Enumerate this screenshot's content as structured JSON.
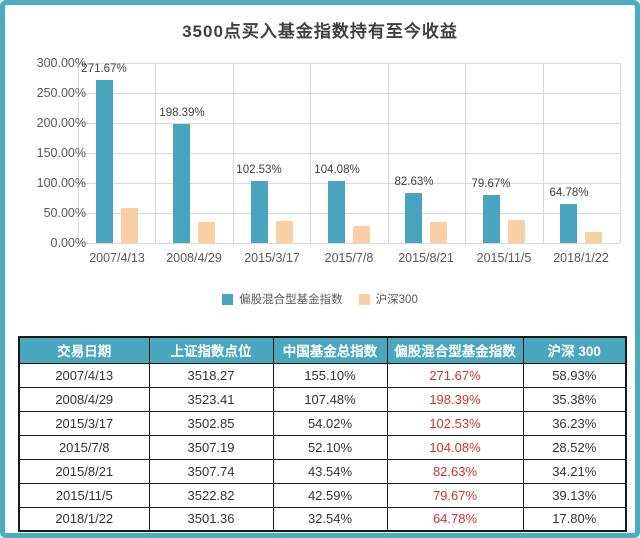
{
  "title": "3500点买入基金指数持有至今收益",
  "colors": {
    "frame": "#4cadc1",
    "series1": "#49a4bd",
    "series2": "#f9d0a5",
    "table_header_bg": "#4aa7bd",
    "highlight_red": "#cc3432",
    "gridline": "#d9d9d9",
    "axis_text": "#595959",
    "title_text": "#404040"
  },
  "chart_data": {
    "type": "bar",
    "title": "3500点买入基金指数持有至今收益",
    "categories": [
      "2007/4/13",
      "2008/4/29",
      "2015/3/17",
      "2015/7/8",
      "2015/8/21",
      "2015/11/5",
      "2018/1/22"
    ],
    "series": [
      {
        "name": "偏股混合型基金指数",
        "color": "#49a4bd",
        "values": [
          271.67,
          198.39,
          102.53,
          104.08,
          82.63,
          79.67,
          64.78
        ],
        "data_labels": [
          "271.67%",
          "198.39%",
          "102.53%",
          "104.08%",
          "82.63%",
          "79.67%",
          "64.78%"
        ]
      },
      {
        "name": "沪深300",
        "color": "#f9d0a5",
        "values": [
          58.93,
          35.38,
          36.23,
          28.52,
          34.21,
          39.13,
          17.8
        ],
        "data_labels": []
      }
    ],
    "xlabel": "",
    "ylabel": "",
    "ylim": [
      0,
      300
    ],
    "y_step": 50,
    "y_tick_labels": [
      "0.00%",
      "50.00%",
      "100.00%",
      "150.00%",
      "200.00%",
      "250.00%",
      "300.00%"
    ],
    "grid": true,
    "legend_position": "bottom"
  },
  "table": {
    "headers": [
      "交易日期",
      "上证指数点位",
      "中国基金总指数",
      "偏股混合型基金指数",
      "沪深 300"
    ],
    "highlight_column_index": 3,
    "rows": [
      [
        "2007/4/13",
        "3518.27",
        "155.10%",
        "271.67%",
        "58.93%"
      ],
      [
        "2008/4/29",
        "3523.41",
        "107.48%",
        "198.39%",
        "35.38%"
      ],
      [
        "2015/3/17",
        "3502.85",
        "54.02%",
        "102.53%",
        "36.23%"
      ],
      [
        "2015/7/8",
        "3507.19",
        "52.10%",
        "104.08%",
        "28.52%"
      ],
      [
        "2015/8/21",
        "3507.74",
        "43.54%",
        "82.63%",
        "34.21%"
      ],
      [
        "2015/11/5",
        "3522.82",
        "42.59%",
        "79.67%",
        "39.13%"
      ],
      [
        "2018/1/22",
        "3501.36",
        "32.54%",
        "64.78%",
        "17.80%"
      ]
    ]
  }
}
